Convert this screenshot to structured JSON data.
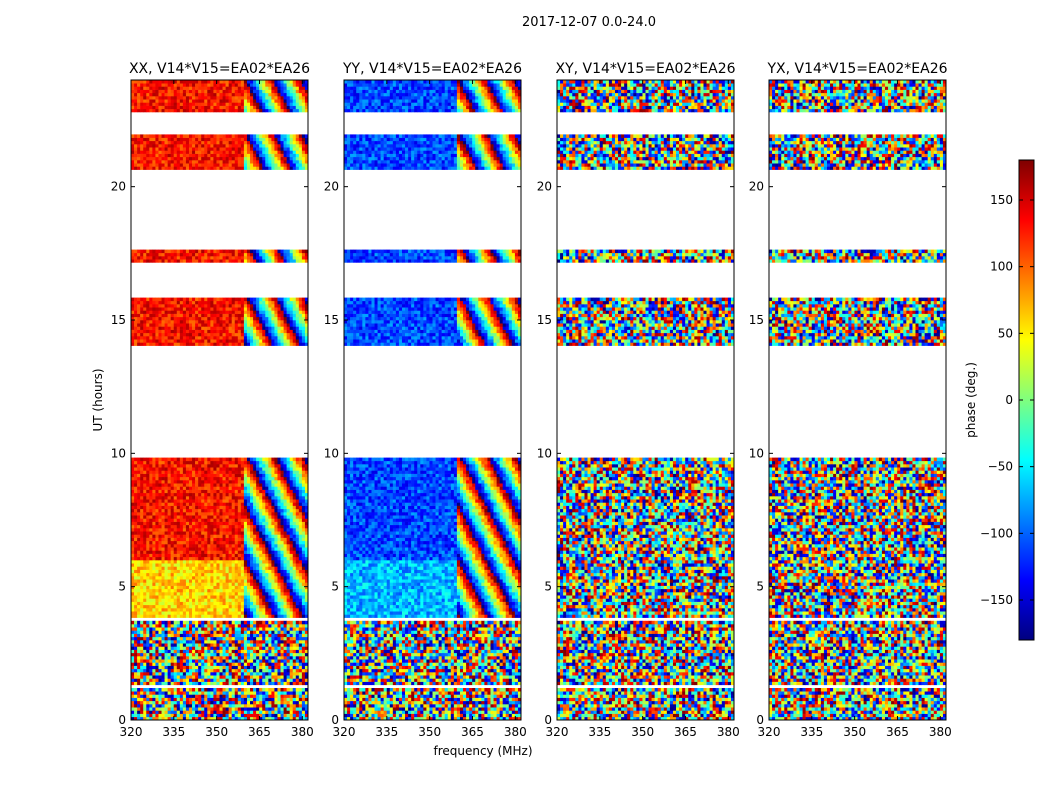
{
  "chart_data": {
    "type": "heatmap",
    "suptitle": "2017-12-07 0.0-24.0",
    "xlabel": "frequency (MHz)",
    "ylabel": "UT (hours)",
    "xlim": [
      320,
      382
    ],
    "ylim": [
      0,
      24
    ],
    "xticks": [
      "320",
      "335",
      "350",
      "365",
      "380"
    ],
    "yticks": [
      "0",
      "5",
      "10",
      "15",
      "20"
    ],
    "panels": [
      {
        "title": "XX, V14*V15=EA02*EA26",
        "base_phase": 130,
        "base_phase_early": 60
      },
      {
        "title": "YY, V14*V15=EA02*EA26",
        "base_phase": -110,
        "base_phase_early": -70
      },
      {
        "title": "XY, V14*V15=EA02*EA26",
        "base_phase": null
      },
      {
        "title": "YX, V14*V15=EA02*EA26",
        "base_phase": null
      }
    ],
    "data_ut_ranges_hours": [
      [
        0.0,
        1.2
      ],
      [
        1.3,
        3.7
      ],
      [
        3.9,
        9.8
      ],
      [
        14.0,
        15.8
      ],
      [
        17.1,
        17.7
      ],
      [
        20.6,
        22.0
      ],
      [
        22.8,
        24.0
      ]
    ],
    "colorbar": {
      "label": "phase (deg.)",
      "range": [
        -180,
        180
      ],
      "ticks": [
        "150",
        "100",
        "50",
        "0",
        "−50",
        "−100",
        "−150"
      ],
      "tick_values": [
        150,
        100,
        50,
        0,
        -50,
        -100,
        -150
      ],
      "colors": [
        "#00007f",
        "#0000ff",
        "#007fff",
        "#00ffff",
        "#7fff7f",
        "#ffff00",
        "#ff7f00",
        "#ff0000",
        "#7f0000"
      ]
    }
  }
}
